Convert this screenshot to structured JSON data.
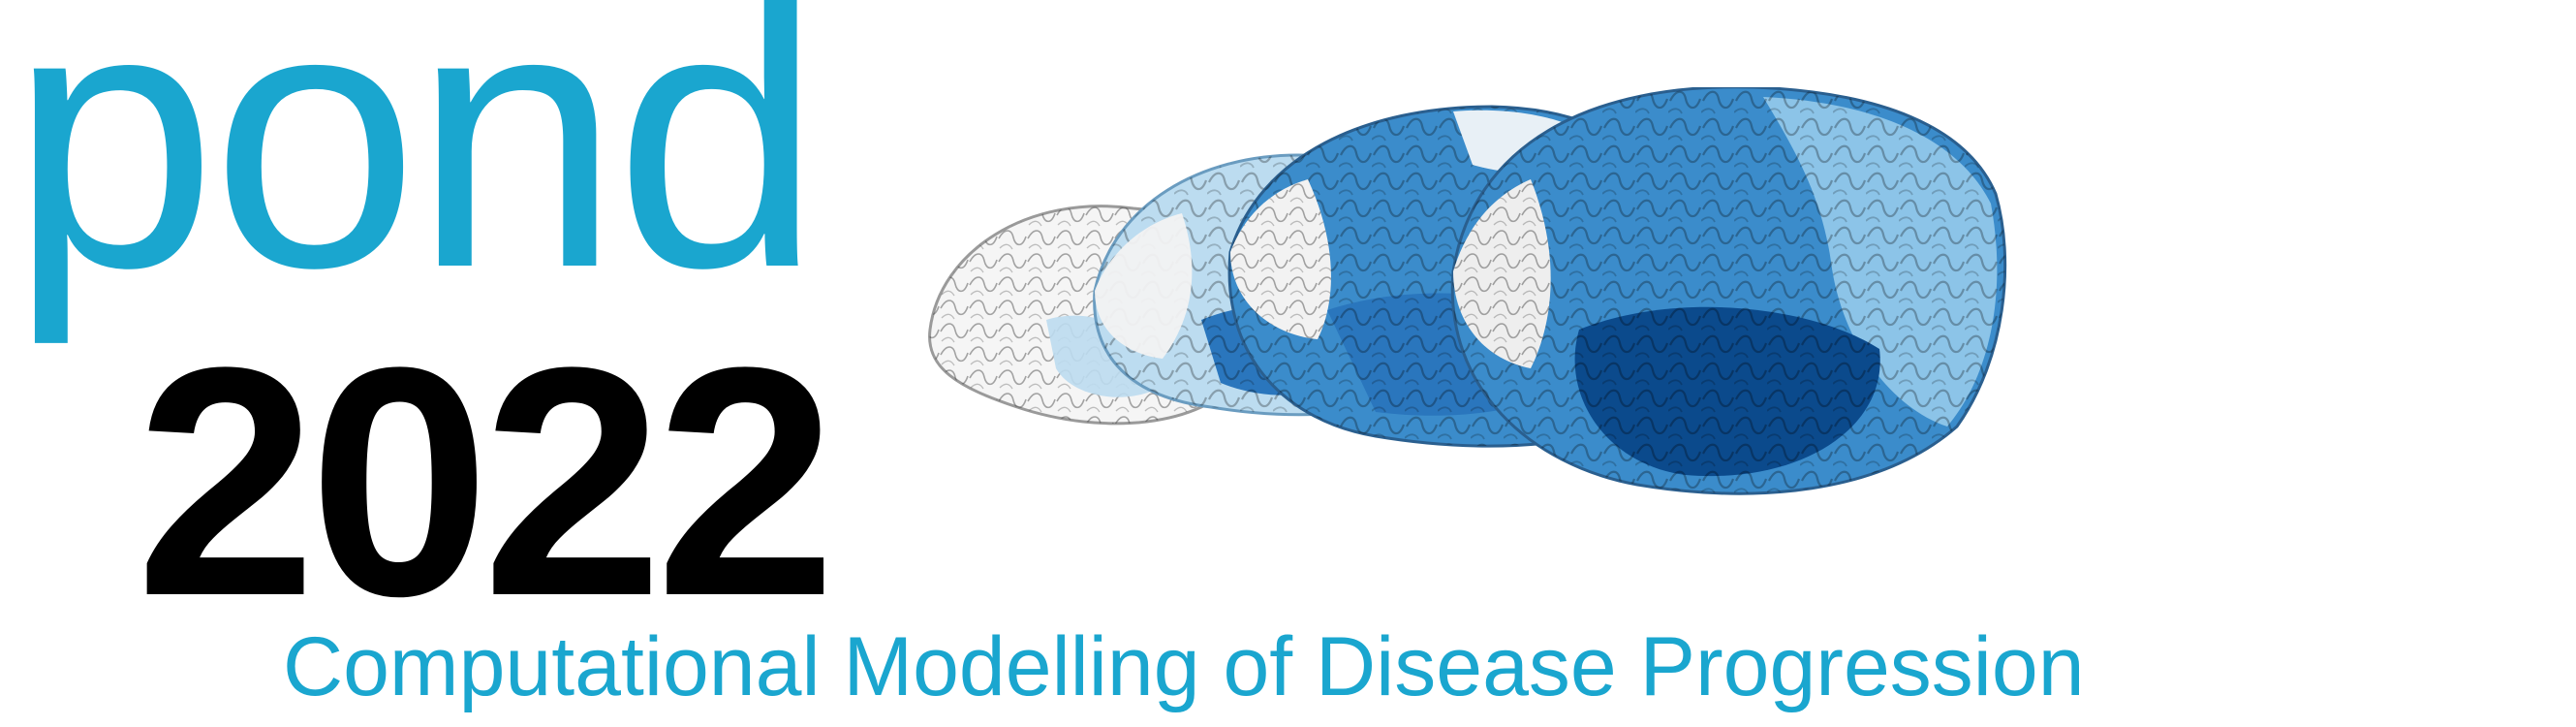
{
  "logo": {
    "word": "pond",
    "year": "2022",
    "tagline": "Computational Modelling of Disease Progression"
  },
  "colors": {
    "brand_cyan": "#1aa6cf",
    "year_black": "#000000",
    "brain_white": "#f4f4f4",
    "brain_pale_blue": "#bcdcf0",
    "brain_light_blue": "#8cc4e8",
    "brain_mid_blue": "#3b8ccb",
    "brain_blue": "#2a76bd",
    "brain_dark_blue": "#0b4a8c",
    "brain_darkest_blue": "#073c78"
  },
  "illustration": {
    "icon": "brain-progression-illustration",
    "brain_count": 5
  }
}
